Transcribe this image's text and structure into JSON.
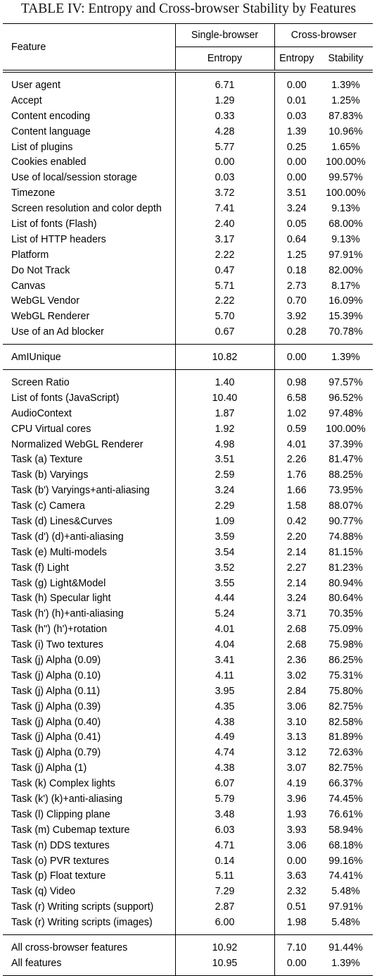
{
  "caption": "TABLE IV: Entropy and Cross-browser Stability by Features",
  "header": {
    "feature": "Feature",
    "single_browser": "Single-browser",
    "cross_browser": "Cross-browser",
    "entropy": "Entropy",
    "entropy2": "Entropy",
    "stability": "Stability"
  },
  "sections": [
    [
      [
        "User agent",
        "6.71",
        "0.00",
        "1.39%"
      ],
      [
        "Accept",
        "1.29",
        "0.01",
        "1.25%"
      ],
      [
        "Content encoding",
        "0.33",
        "0.03",
        "87.83%"
      ],
      [
        "Content language",
        "4.28",
        "1.39",
        "10.96%"
      ],
      [
        "List of plugins",
        "5.77",
        "0.25",
        "1.65%"
      ],
      [
        "Cookies enabled",
        "0.00",
        "0.00",
        "100.00%"
      ],
      [
        "Use of local/session storage",
        "0.03",
        "0.00",
        "99.57%"
      ],
      [
        "Timezone",
        "3.72",
        "3.51",
        "100.00%"
      ],
      [
        "Screen resolution and color depth",
        "7.41",
        "3.24",
        "9.13%"
      ],
      [
        "List of fonts (Flash)",
        "2.40",
        "0.05",
        "68.00%"
      ],
      [
        "List of HTTP headers",
        "3.17",
        "0.64",
        "9.13%"
      ],
      [
        "Platform",
        "2.22",
        "1.25",
        "97.91%"
      ],
      [
        "Do Not Track",
        "0.47",
        "0.18",
        "82.00%"
      ],
      [
        "Canvas",
        "5.71",
        "2.73",
        "8.17%"
      ],
      [
        "WebGL Vendor",
        "2.22",
        "0.70",
        "16.09%"
      ],
      [
        "WebGL Renderer",
        "5.70",
        "3.92",
        "15.39%"
      ],
      [
        "Use of an Ad blocker",
        "0.67",
        "0.28",
        "70.78%"
      ]
    ],
    [
      [
        "AmIUnique",
        "10.82",
        "0.00",
        "1.39%"
      ]
    ],
    [
      [
        "Screen Ratio",
        "1.40",
        "0.98",
        "97.57%"
      ],
      [
        "List of fonts (JavaScript)",
        "10.40",
        "6.58",
        "96.52%"
      ],
      [
        "AudioContext",
        "1.87",
        "1.02",
        "97.48%"
      ],
      [
        "CPU Virtual cores",
        "1.92",
        "0.59",
        "100.00%"
      ],
      [
        "Normalized WebGL Renderer",
        "4.98",
        "4.01",
        "37.39%"
      ],
      [
        "Task (a) Texture",
        "3.51",
        "2.26",
        "81.47%"
      ],
      [
        "Task (b) Varyings",
        "2.59",
        "1.76",
        "88.25%"
      ],
      [
        "Task (b') Varyings+anti-aliasing",
        "3.24",
        "1.66",
        "73.95%"
      ],
      [
        "Task (c) Camera",
        "2.29",
        "1.58",
        "88.07%"
      ],
      [
        "Task (d) Lines&Curves",
        "1.09",
        "0.42",
        "90.77%"
      ],
      [
        "Task (d') (d)+anti-aliasing",
        "3.59",
        "2.20",
        "74.88%"
      ],
      [
        "Task (e) Multi-models",
        "3.54",
        "2.14",
        "81.15%"
      ],
      [
        "Task (f) Light",
        "3.52",
        "2.27",
        "81.23%"
      ],
      [
        "Task (g) Light&Model",
        "3.55",
        "2.14",
        "80.94%"
      ],
      [
        "Task (h) Specular light",
        "4.44",
        "3.24",
        "80.64%"
      ],
      [
        "Task (h') (h)+anti-aliasing",
        "5.24",
        "3.71",
        "70.35%"
      ],
      [
        "Task (h\") (h')+rotation",
        "4.01",
        "2.68",
        "75.09%"
      ],
      [
        "Task (i) Two textures",
        "4.04",
        "2.68",
        "75.98%"
      ],
      [
        "Task (j) Alpha (0.09)",
        "3.41",
        "2.36",
        "86.25%"
      ],
      [
        "Task (j) Alpha (0.10)",
        "4.11",
        "3.02",
        "75.31%"
      ],
      [
        "Task (j) Alpha (0.11)",
        "3.95",
        "2.84",
        "75.80%"
      ],
      [
        "Task (j) Alpha (0.39)",
        "4.35",
        "3.06",
        "82.75%"
      ],
      [
        "Task (j) Alpha (0.40)",
        "4.38",
        "3.10",
        "82.58%"
      ],
      [
        "Task (j) Alpha (0.41)",
        "4.49",
        "3.13",
        "81.89%"
      ],
      [
        "Task (j) Alpha (0.79)",
        "4.74",
        "3.12",
        "72.63%"
      ],
      [
        "Task (j) Alpha (1)",
        "4.38",
        "3.07",
        "82.75%"
      ],
      [
        "Task (k) Complex lights",
        "6.07",
        "4.19",
        "66.37%"
      ],
      [
        "Task (k') (k)+anti-aliasing",
        "5.79",
        "3.96",
        "74.45%"
      ],
      [
        "Task (l) Clipping plane",
        "3.48",
        "1.93",
        "76.61%"
      ],
      [
        "Task (m) Cubemap texture",
        "6.03",
        "3.93",
        "58.94%"
      ],
      [
        "Task (n) DDS textures",
        "4.71",
        "3.06",
        "68.18%"
      ],
      [
        "Task (o) PVR textures",
        "0.14",
        "0.00",
        "99.16%"
      ],
      [
        "Task (p) Float texture",
        "5.11",
        "3.63",
        "74.41%"
      ],
      [
        "Task (q) Video",
        "7.29",
        "2.32",
        "5.48%"
      ],
      [
        "Task (r) Writing scripts (support)",
        "2.87",
        "0.51",
        "97.91%"
      ],
      [
        "Task (r) Writing scripts (images)",
        "6.00",
        "1.98",
        "5.48%"
      ]
    ],
    [
      [
        "All cross-browser features",
        "10.92",
        "7.10",
        "91.44%"
      ],
      [
        "All features",
        "10.95",
        "0.00",
        "1.39%"
      ]
    ]
  ]
}
